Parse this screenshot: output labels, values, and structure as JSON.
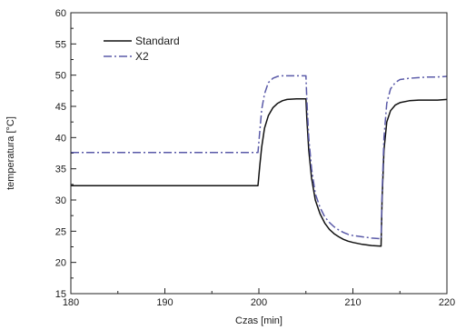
{
  "chart_data": {
    "type": "line",
    "title": "",
    "xlabel": "Czas [min]",
    "ylabel": "temperatura [°C]",
    "xlim": [
      180,
      220
    ],
    "ylim": [
      15,
      60
    ],
    "x_ticks": [
      180,
      190,
      200,
      210,
      220
    ],
    "y_ticks": [
      15,
      20,
      25,
      30,
      35,
      40,
      45,
      50,
      55,
      60
    ],
    "grid": false,
    "legend_position": "top-left",
    "series": [
      {
        "name": "Standard",
        "color": "#111111",
        "style": "solid",
        "x": [
          180,
          199.9,
          200.1,
          200.3,
          200.6,
          201.0,
          201.5,
          202.0,
          202.5,
          203.0,
          204.0,
          205.0,
          205.1,
          205.3,
          205.6,
          206.0,
          206.5,
          207.0,
          207.5,
          208.0,
          208.5,
          209.0,
          209.5,
          210.0,
          211.0,
          212.0,
          213.0,
          213.1,
          213.3,
          213.6,
          214.0,
          214.5,
          215.0,
          216.0,
          217.0,
          218.0,
          219.0,
          220.0
        ],
        "values": [
          32.3,
          32.3,
          35.5,
          38.5,
          41.5,
          43.5,
          44.8,
          45.5,
          45.9,
          46.1,
          46.2,
          46.2,
          43.0,
          38.0,
          33.5,
          30.0,
          27.8,
          26.3,
          25.3,
          24.6,
          24.1,
          23.7,
          23.4,
          23.2,
          22.9,
          22.7,
          22.6,
          30.0,
          38.0,
          42.5,
          44.3,
          45.2,
          45.6,
          45.9,
          46.0,
          46.0,
          46.0,
          46.1
        ]
      },
      {
        "name": "X2",
        "color": "#5a5aa8",
        "style": "dashdot",
        "x": [
          180,
          199.9,
          200.1,
          200.3,
          200.6,
          201.0,
          201.5,
          202.0,
          202.5,
          203.0,
          204.0,
          205.0,
          205.1,
          205.3,
          205.6,
          206.0,
          206.5,
          207.0,
          207.5,
          208.0,
          208.5,
          209.0,
          209.5,
          210.0,
          211.0,
          212.0,
          213.0,
          213.1,
          213.3,
          213.6,
          214.0,
          214.5,
          215.0,
          216.0,
          217.0,
          218.0,
          219.0,
          220.0
        ],
        "values": [
          37.6,
          37.6,
          41.0,
          44.5,
          47.0,
          48.8,
          49.5,
          49.8,
          49.9,
          49.9,
          49.9,
          49.9,
          46.0,
          40.0,
          35.0,
          31.0,
          28.8,
          27.3,
          26.4,
          25.7,
          25.2,
          24.8,
          24.5,
          24.3,
          24.1,
          23.9,
          23.8,
          31.0,
          40.0,
          45.5,
          47.8,
          48.8,
          49.3,
          49.5,
          49.6,
          49.7,
          49.7,
          49.8
        ]
      }
    ]
  }
}
